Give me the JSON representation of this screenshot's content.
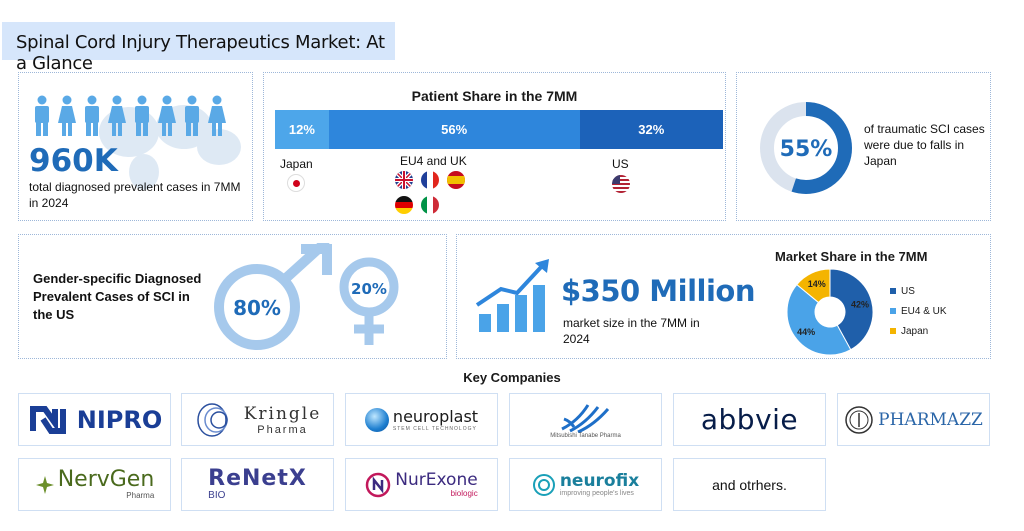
{
  "title": "Spinal Cord Injury Therapeutics Market: At a Glance",
  "patients": {
    "value": "960K",
    "description": "total diagnosed prevalent cases in 7MM in 2024"
  },
  "patient_share": {
    "title": "Patient Share in the 7MM",
    "segments": [
      {
        "label": "Japan",
        "value": "12%",
        "color": "#4da6ea"
      },
      {
        "label": "EU4 and UK",
        "value": "56%",
        "color": "#2e86dc"
      },
      {
        "label": "US",
        "value": "32%",
        "color": "#1c62b9"
      }
    ]
  },
  "falls": {
    "value": "55%",
    "description": "of traumatic SCI cases were due to falls in Japan"
  },
  "gender": {
    "title": "Gender-specific Diagnosed Prevalent Cases of SCI in the US",
    "male": "80%",
    "female": "20%"
  },
  "market": {
    "value": "$350 Million",
    "description": "market size in the 7MM in 2024"
  },
  "chart_data": {
    "type": "pie",
    "title": "Market Share in the 7MM",
    "categories": [
      "US",
      "EU4 & UK",
      "Japan"
    ],
    "values": [
      42,
      44,
      14
    ],
    "labels": [
      "42%",
      "44%",
      "14%"
    ],
    "colors": [
      "#1f5faa",
      "#4aa3e8",
      "#f4b400"
    ],
    "legend": "right"
  },
  "companies": {
    "title": "Key Companies",
    "logos": {
      "nipro": "NIPRO",
      "kringle": "Kringle",
      "kringle_sub": "Pharma",
      "neuroplast": "neuroplast",
      "neuroplast_sub": "STEM CELL TECHNOLOGY",
      "mitsubishi": "Mitsubishi Tanabe Pharma",
      "abbvie": "abbvie",
      "pharmazz": "PHARMAZZ",
      "nervgen": "NervGen",
      "nervgen_sub": "Pharma",
      "renetx": "ReNetX",
      "renetx_sub": "BIO",
      "nurexone": "NurExone",
      "nurexone_sub": "biologic",
      "neurofix": "neurofix",
      "neurofix_sub": "improving people's lives",
      "others": "and otrhers."
    }
  }
}
